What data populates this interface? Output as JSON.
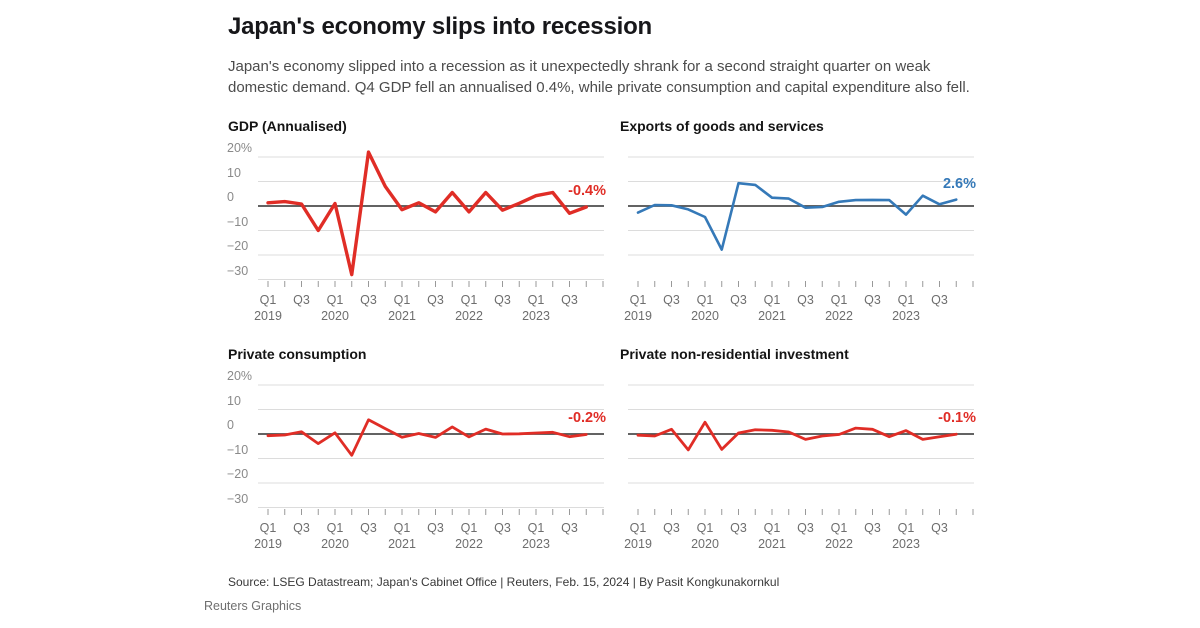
{
  "page": {
    "title": "Japan's economy slips into recession",
    "subtitle_lines": [
      "Japan's economy slipped into a recession as it unexpectedly shrank for a second straight quarter on weak",
      "domestic demand. Q4 GDP fell an annualised 0.4%, while private consumption and capital expenditure also fell."
    ],
    "source_line": "Source: LSEG Datastream; Japan's Cabinet Office | Reuters, Feb. 15, 2024 | By Pasit Kongkunakornkul",
    "footer_brand": "Reuters Graphics"
  },
  "colors": {
    "red": "#e02d26",
    "blue": "#3579b8",
    "grid": "#dcdcdc",
    "zero_line": "#4d4d4d",
    "tick": "#999999",
    "y_label": "#8a8a8a",
    "x_label": "#6e6e6e"
  },
  "axis": {
    "y_ticks": [
      {
        "label": "20%",
        "value": 20
      },
      {
        "label": "10",
        "value": 10
      },
      {
        "label": "0",
        "value": 0
      },
      {
        "label": "−10",
        "value": -10
      },
      {
        "label": "−20",
        "value": -20
      },
      {
        "label": "−30",
        "value": -30
      }
    ],
    "x_quarter_labels": [
      "Q1",
      "Q3",
      "Q1",
      "Q3",
      "Q1",
      "Q3",
      "Q1",
      "Q3",
      "Q1",
      "Q3"
    ],
    "x_year_labels": [
      "2019",
      "2020",
      "2021",
      "2022",
      "2023"
    ]
  },
  "chart_data": [
    {
      "type": "line",
      "title": "GDP (Annualised)",
      "color": "red",
      "end_label": "-0.4%",
      "y_axis_labels_visible": true,
      "gridline_values": [
        20,
        10,
        0,
        -10,
        -20,
        -30
      ],
      "ylim": [
        -34,
        27
      ],
      "categories": [
        "2019 Q1",
        "2019 Q2",
        "2019 Q3",
        "2019 Q4",
        "2020 Q1",
        "2020 Q2",
        "2020 Q3",
        "2020 Q4",
        "2021 Q1",
        "2021 Q2",
        "2021 Q3",
        "2021 Q4",
        "2022 Q1",
        "2022 Q2",
        "2022 Q3",
        "2022 Q4",
        "2023 Q1",
        "2023 Q2",
        "2023 Q3",
        "2023 Q4"
      ],
      "values": [
        1.3,
        1.8,
        0.8,
        -10,
        1.0,
        -28,
        22,
        8,
        -1.5,
        1.3,
        -2.4,
        5.5,
        -2.4,
        5.5,
        -1.7,
        1.1,
        4.2,
        5.5,
        -3.0,
        -0.4
      ]
    },
    {
      "type": "line",
      "title": "Exports of goods and services",
      "color": "blue",
      "end_label": "2.6%",
      "y_axis_labels_visible": false,
      "gridline_values": [
        20,
        10,
        0,
        -10,
        -20
      ],
      "ylim": [
        -34,
        27
      ],
      "categories": [
        "2019 Q1",
        "2019 Q2",
        "2019 Q3",
        "2019 Q4",
        "2020 Q1",
        "2020 Q2",
        "2020 Q3",
        "2020 Q4",
        "2021 Q1",
        "2021 Q2",
        "2021 Q3",
        "2021 Q4",
        "2022 Q1",
        "2022 Q2",
        "2022 Q3",
        "2022 Q4",
        "2023 Q1",
        "2023 Q2",
        "2023 Q3",
        "2023 Q4"
      ],
      "values": [
        -2.7,
        0.4,
        0.3,
        -1.4,
        -4.5,
        -17.8,
        9.3,
        8.6,
        3.4,
        3.0,
        -0.7,
        -0.4,
        1.7,
        2.4,
        2.5,
        2.4,
        -3.5,
        4.2,
        0.7,
        2.6
      ]
    },
    {
      "type": "line",
      "title": "Private consumption",
      "color": "red",
      "end_label": "-0.2%",
      "y_axis_labels_visible": true,
      "gridline_values": [
        20,
        10,
        0,
        -10,
        -20,
        -30
      ],
      "ylim": [
        -34,
        27
      ],
      "categories": [
        "2019 Q1",
        "2019 Q2",
        "2019 Q3",
        "2019 Q4",
        "2020 Q1",
        "2020 Q2",
        "2020 Q3",
        "2020 Q4",
        "2021 Q1",
        "2021 Q2",
        "2021 Q3",
        "2021 Q4",
        "2022 Q1",
        "2022 Q2",
        "2022 Q3",
        "2022 Q4",
        "2023 Q1",
        "2023 Q2",
        "2023 Q3",
        "2023 Q4"
      ],
      "values": [
        -0.7,
        -0.4,
        0.9,
        -3.9,
        0.5,
        -8.7,
        5.8,
        2.2,
        -1.3,
        0.2,
        -1.4,
        2.9,
        -1.2,
        2.0,
        0.0,
        0.1,
        0.4,
        0.7,
        -1.1,
        -0.2
      ]
    },
    {
      "type": "line",
      "title": "Private non-residential investment",
      "color": "red",
      "end_label": "-0.1%",
      "y_axis_labels_visible": false,
      "gridline_values": [
        20,
        10,
        0,
        -10,
        -20
      ],
      "ylim": [
        -34,
        27
      ],
      "categories": [
        "2019 Q1",
        "2019 Q2",
        "2019 Q3",
        "2019 Q4",
        "2020 Q1",
        "2020 Q2",
        "2020 Q3",
        "2020 Q4",
        "2021 Q1",
        "2021 Q2",
        "2021 Q3",
        "2021 Q4",
        "2022 Q1",
        "2022 Q2",
        "2022 Q3",
        "2022 Q4",
        "2023 Q1",
        "2023 Q2",
        "2023 Q3",
        "2023 Q4"
      ],
      "values": [
        -0.5,
        -0.8,
        1.9,
        -6.5,
        4.8,
        -6.3,
        0.4,
        1.7,
        1.5,
        0.8,
        -2.2,
        -0.8,
        -0.2,
        2.4,
        1.9,
        -1.1,
        1.4,
        -2.2,
        -1.1,
        -0.1
      ]
    }
  ]
}
